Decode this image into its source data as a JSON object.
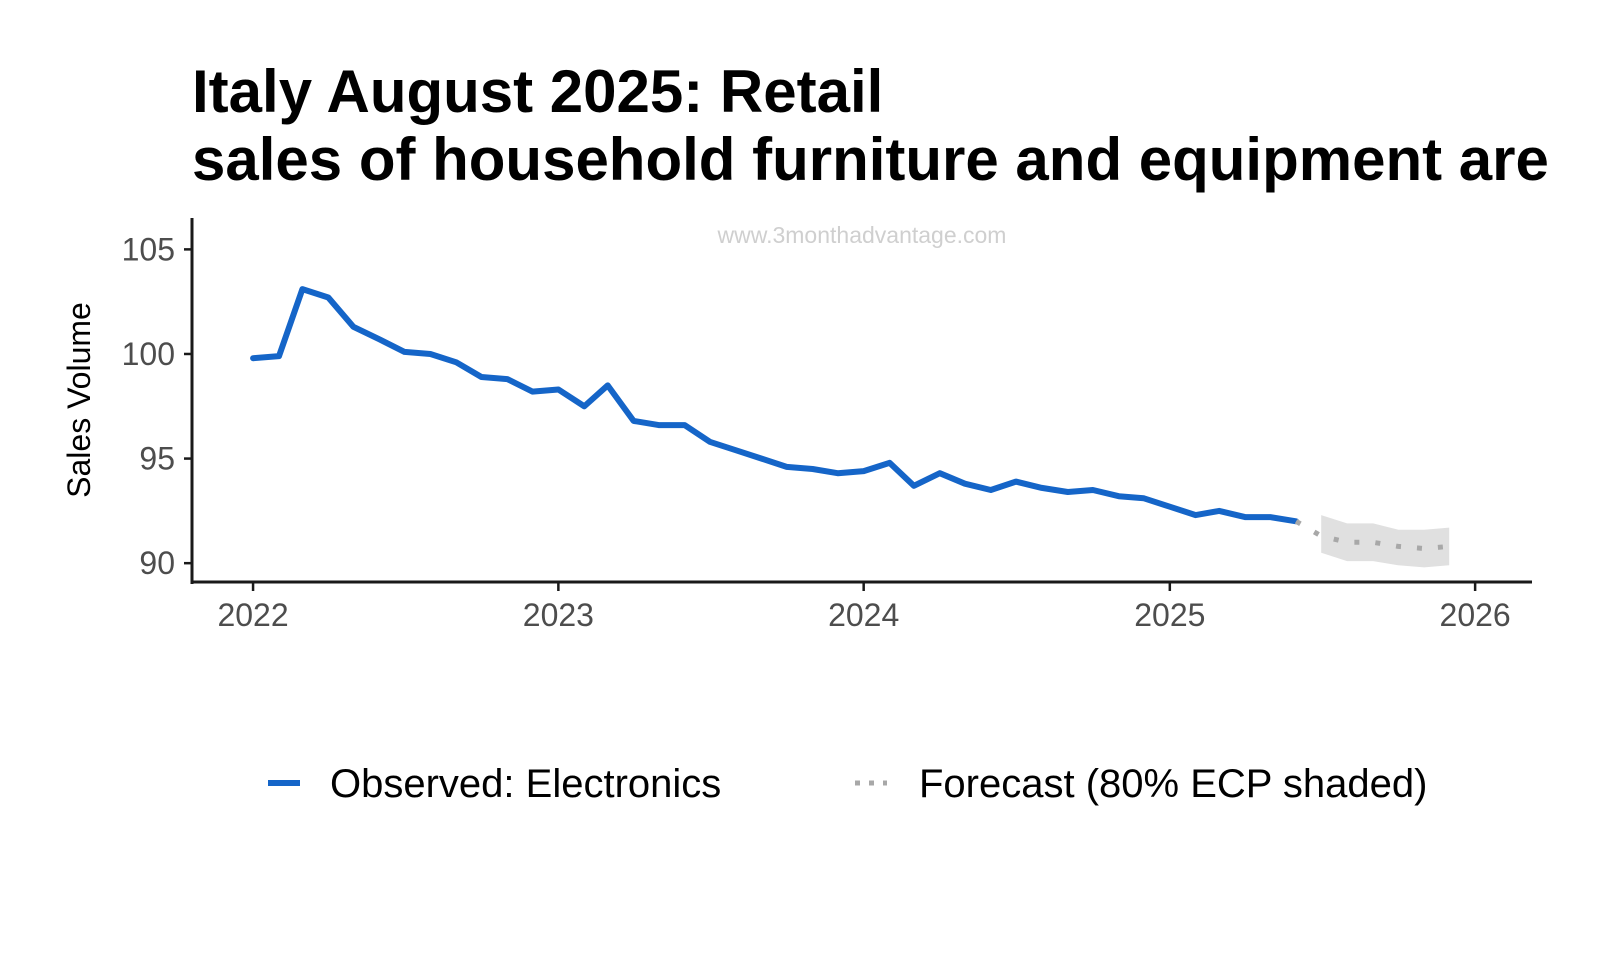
{
  "chart_data": {
    "type": "line",
    "title_lines": [
      "Italy August 2025: Retail",
      "sales of household furniture and equipment are"
    ],
    "watermark": "www.3monthadvantage.com",
    "ylabel": "Sales Volume",
    "xlabel": "",
    "ylim": [
      89.1,
      106.5
    ],
    "xlim": [
      "2021-10-20",
      "2026-03-10"
    ],
    "y_ticks": [
      90,
      95,
      100,
      105
    ],
    "x_ticks": [
      "2022",
      "2023",
      "2024",
      "2025",
      "2026"
    ],
    "grid": false,
    "legend_position": "bottom",
    "series": [
      {
        "name": "Observed: Electronics",
        "style": "solid",
        "color": "#1565c8",
        "x": [
          "2022-01",
          "2022-02",
          "2022-03",
          "2022-04",
          "2022-05",
          "2022-06",
          "2022-07",
          "2022-08",
          "2022-09",
          "2022-10",
          "2022-11",
          "2022-12",
          "2023-01",
          "2023-02",
          "2023-03",
          "2023-04",
          "2023-05",
          "2023-06",
          "2023-07",
          "2023-08",
          "2023-09",
          "2023-10",
          "2023-11",
          "2023-12",
          "2024-01",
          "2024-02",
          "2024-03",
          "2024-04",
          "2024-05",
          "2024-06",
          "2024-07",
          "2024-08",
          "2024-09",
          "2024-10",
          "2024-11",
          "2024-12",
          "2025-01",
          "2025-02",
          "2025-03",
          "2025-04",
          "2025-05",
          "2025-06"
        ],
        "values": [
          99.8,
          99.9,
          103.1,
          102.7,
          101.3,
          100.7,
          100.1,
          100.0,
          99.6,
          98.9,
          98.8,
          98.2,
          98.3,
          97.5,
          98.5,
          96.8,
          96.6,
          96.6,
          95.8,
          95.4,
          95.0,
          94.6,
          94.5,
          94.3,
          94.4,
          94.8,
          93.7,
          94.3,
          93.8,
          93.5,
          93.9,
          93.6,
          93.4,
          93.5,
          93.2,
          93.1,
          92.7,
          92.3,
          92.5,
          92.2,
          92.2,
          92.0
        ]
      },
      {
        "name": "Forecast (80% ECP shaded)",
        "style": "dotted",
        "color": "#a8a8a8",
        "x": [
          "2025-06",
          "2025-07",
          "2025-08",
          "2025-09",
          "2025-10",
          "2025-11",
          "2025-12"
        ],
        "values": [
          92.0,
          91.3,
          91.0,
          91.0,
          90.8,
          90.7,
          90.8
        ],
        "band_lower": [
          null,
          90.5,
          90.1,
          90.1,
          89.9,
          89.8,
          89.9
        ],
        "band_upper": [
          null,
          92.3,
          91.9,
          91.9,
          91.6,
          91.6,
          91.7
        ],
        "band_color": "#e0e0e0"
      }
    ]
  }
}
